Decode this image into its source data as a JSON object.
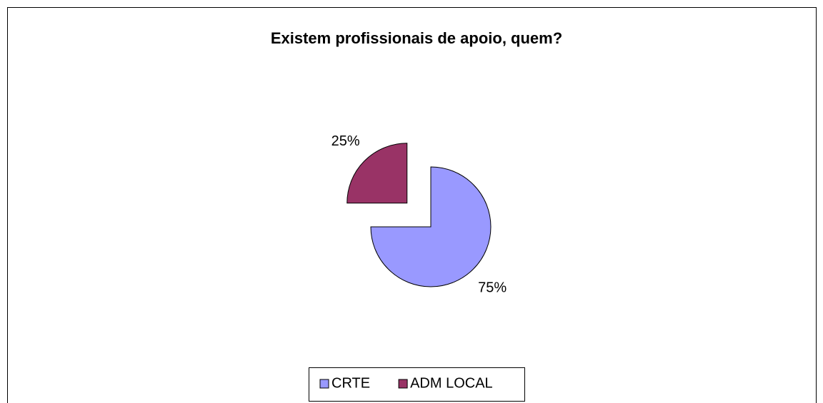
{
  "chart_data": {
    "type": "pie",
    "title": "Existem profissionais de apoio, quem?",
    "categories": [
      "CRTE",
      "ADM LOCAL"
    ],
    "values": [
      75,
      25
    ],
    "value_labels": [
      "75%",
      "25%"
    ],
    "colors": [
      "#9999ff",
      "#993366"
    ],
    "explode": [
      false,
      true
    ],
    "legend": "bottom"
  }
}
